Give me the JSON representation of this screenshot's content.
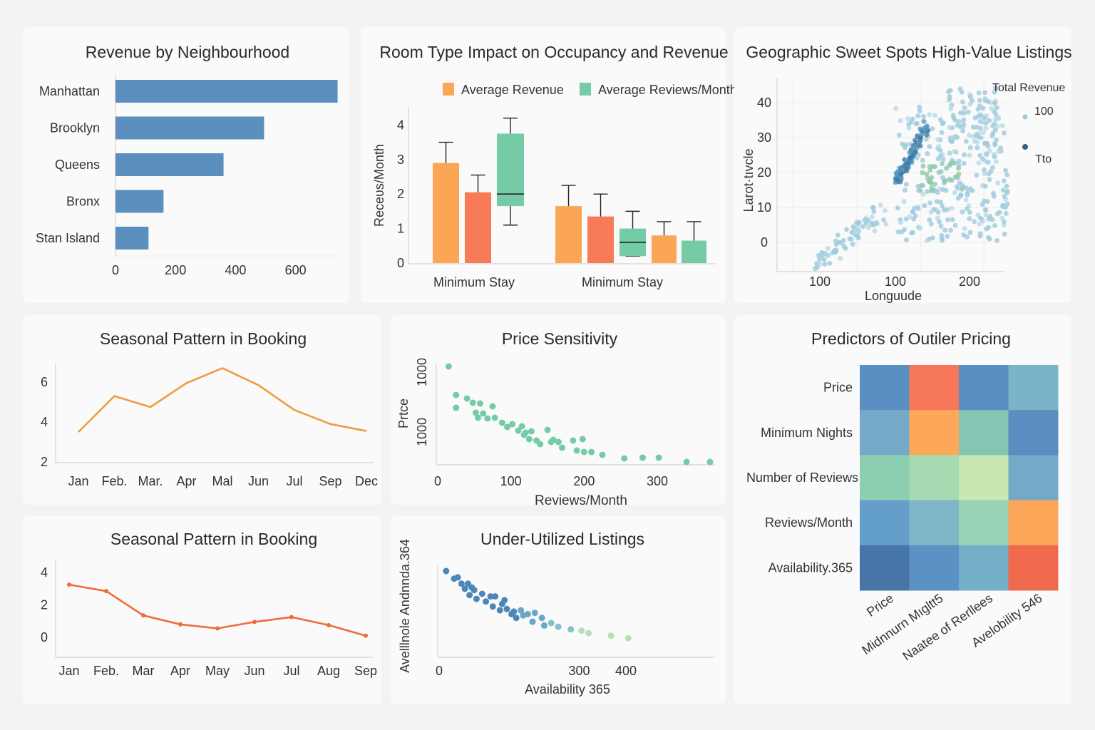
{
  "chart_data": [
    {
      "id": "revenue",
      "type": "bar",
      "orientation": "horizontal",
      "title": "Revenue by Neighbourhood",
      "categories": [
        "Manhattan",
        "Brooklyn",
        "Queens",
        "Bronx",
        "Stan Island"
      ],
      "values": [
        740,
        495,
        360,
        160,
        110
      ],
      "xticks": [
        0,
        200,
        400,
        600
      ],
      "xlim": [
        0,
        760
      ],
      "color": "#5b8fbe"
    },
    {
      "id": "roomtype",
      "type": "bar",
      "title": "Room Type Impact on Occupancy and Revenue",
      "ylabel": "Reᴄeʋs/Month",
      "legend": [
        "Average Revenue",
        "Average Reviews/Month"
      ],
      "legend_position": "top",
      "categories": [
        "Minimum Stay",
        "Minimum Stay"
      ],
      "yticks": [
        0,
        1,
        2,
        3,
        4
      ],
      "ylim": [
        0,
        4.5
      ],
      "bars": [
        {
          "group": 0,
          "kind": "bar",
          "color": "#fba654",
          "value": 2.9,
          "err": 3.5
        },
        {
          "group": 0,
          "kind": "bar",
          "color": "#f77b56",
          "value": 2.05,
          "err": 2.55
        },
        {
          "group": 0,
          "kind": "box",
          "color": "#74cba5",
          "q1": 1.65,
          "median": 2.0,
          "q3": 3.75,
          "min": 1.1,
          "max": 4.2
        },
        {
          "group": 1,
          "kind": "bar",
          "color": "#fba654",
          "value": 1.65,
          "err": 2.25
        },
        {
          "group": 1,
          "kind": "bar",
          "color": "#f77b56",
          "value": 1.35,
          "err": 2.0
        },
        {
          "group": 1,
          "kind": "box",
          "color": "#74cba5",
          "q1": 0.2,
          "median": 0.6,
          "q3": 1.0,
          "min": 0.2,
          "max": 1.5
        },
        {
          "group": 1,
          "kind": "bar",
          "color": "#fba654",
          "value": 0.8,
          "err": 1.2
        },
        {
          "group": 1,
          "kind": "bar",
          "color": "#74cba5",
          "value": 0.65,
          "err": 1.2
        }
      ],
      "colors": {
        "revenue": "#fba654",
        "reviews": "#74cba5"
      }
    },
    {
      "id": "geo",
      "type": "scatter",
      "title": "Geographic Sweet Spots High-Value Listings",
      "xlabel": "Longuude",
      "ylabel": "Larot·tıvcle",
      "xticks": [
        "100",
        "100",
        "200"
      ],
      "yticks": [
        0,
        10,
        20,
        30,
        40
      ],
      "ylim": [
        -7,
        45
      ],
      "legend_title": "Total Revenue",
      "legend": [
        "100",
        "Tto"
      ],
      "legend_position": "right"
    },
    {
      "id": "season1",
      "type": "line",
      "title": "Seasonal Pattern in Booking",
      "categories": [
        "Jan",
        "Feb.",
        "Mar.",
        "Apr",
        "Mal",
        "Jun",
        "Jul",
        "Sep",
        "Dec"
      ],
      "values": [
        3.5,
        5.3,
        4.75,
        5.95,
        6.7,
        5.85,
        4.6,
        3.9,
        3.55
      ],
      "yticks": [
        2,
        4,
        6
      ],
      "ylim": [
        1.8,
        7.0
      ],
      "color": "#f29a3e"
    },
    {
      "id": "price",
      "type": "scatter",
      "title": "Price Sensitivity",
      "xlabel": "Reviews/Month",
      "ylabel": "Prtce",
      "xticks": [
        0,
        100,
        200,
        300
      ],
      "yticks": [
        "1000",
        "1000"
      ],
      "color": "#74cba5",
      "points": [
        [
          15,
          1000
        ],
        [
          25,
          960
        ],
        [
          25,
          942
        ],
        [
          40,
          955
        ],
        [
          48,
          949
        ],
        [
          52,
          935
        ],
        [
          55,
          928
        ],
        [
          58,
          948
        ],
        [
          62,
          934
        ],
        [
          68,
          927
        ],
        [
          75,
          944
        ],
        [
          78,
          928
        ],
        [
          88,
          921
        ],
        [
          95,
          915
        ],
        [
          102,
          919
        ],
        [
          110,
          910
        ],
        [
          115,
          916
        ],
        [
          118,
          904
        ],
        [
          120,
          907
        ],
        [
          125,
          898
        ],
        [
          128,
          909
        ],
        [
          135,
          896
        ],
        [
          140,
          891
        ],
        [
          150,
          911
        ],
        [
          155,
          894
        ],
        [
          158,
          897
        ],
        [
          165,
          894
        ],
        [
          170,
          886
        ],
        [
          185,
          896
        ],
        [
          190,
          882
        ],
        [
          198,
          898
        ],
        [
          200,
          880
        ],
        [
          210,
          880
        ],
        [
          225,
          876
        ],
        [
          255,
          871
        ],
        [
          280,
          872
        ],
        [
          302,
          872
        ],
        [
          340,
          866
        ],
        [
          372,
          866
        ]
      ]
    },
    {
      "id": "season2",
      "type": "line",
      "title": "Seasonal Pattern in Booking",
      "categories": [
        "Jan",
        "Feb.",
        "Mar",
        "Apr",
        "May",
        "Jun",
        "Jul",
        "Aug",
        "Sep"
      ],
      "values": [
        3.25,
        2.85,
        1.35,
        0.8,
        0.55,
        0.95,
        1.25,
        0.75,
        0.1
      ],
      "yticks": [
        0,
        2,
        4
      ],
      "ylim": [
        -0.6,
        4.5
      ],
      "color": "#ef6a3c"
    },
    {
      "id": "underutil",
      "type": "scatter",
      "title": "Under-Utilized Listings",
      "xlabel": "Availability 365",
      "ylabel": "Avelllnole Andnnda.364",
      "xticks": [
        0,
        300,
        400
      ],
      "points": [
        [
          15,
          94
        ],
        [
          32,
          88
        ],
        [
          40,
          89
        ],
        [
          48,
          84
        ],
        [
          55,
          80
        ],
        [
          62,
          84
        ],
        [
          65,
          75
        ],
        [
          70,
          81
        ],
        [
          75,
          79
        ],
        [
          80,
          72
        ],
        [
          92,
          76
        ],
        [
          100,
          70
        ],
        [
          110,
          74
        ],
        [
          115,
          66
        ],
        [
          120,
          74
        ],
        [
          130,
          63
        ],
        [
          135,
          68
        ],
        [
          140,
          71
        ],
        [
          145,
          64
        ],
        [
          155,
          60
        ],
        [
          160,
          62
        ],
        [
          165,
          57
        ],
        [
          175,
          63
        ],
        [
          180,
          59
        ],
        [
          190,
          60
        ],
        [
          200,
          54
        ],
        [
          205,
          61
        ],
        [
          220,
          57
        ],
        [
          225,
          51
        ],
        [
          240,
          53
        ],
        [
          255,
          50
        ],
        [
          282,
          48
        ],
        [
          305,
          47
        ],
        [
          320,
          45
        ],
        [
          368,
          43
        ],
        [
          405,
          41
        ]
      ],
      "x_scale_note": ""
    },
    {
      "id": "heatmap",
      "type": "heatmap",
      "title": "Predictors of Outiler Pricing",
      "rows": [
        "Price",
        "Minimum Nights",
        "Number of Reviews",
        "Reviews/Month",
        "Availability.365"
      ],
      "cols": [
        "Price",
        "Midnnurn Mıgltt5",
        "Naatee of Rerllees",
        "Avelobility 546"
      ],
      "colors": [
        [
          "#5a8fc2",
          "#f6775a",
          "#5a8fc2",
          "#79b4c9"
        ],
        [
          "#75a9c9",
          "#fca75a",
          "#83c6b4",
          "#5b8dc0"
        ],
        [
          "#8ccfb0",
          "#a6dbb2",
          "#c9e7b0",
          "#74a9c8"
        ],
        [
          "#649fcc",
          "#7fb7c8",
          "#98d3b5",
          "#fca65a"
        ],
        [
          "#4775a7",
          "#5b92c4",
          "#74aec8",
          "#f06b4e"
        ]
      ]
    }
  ]
}
